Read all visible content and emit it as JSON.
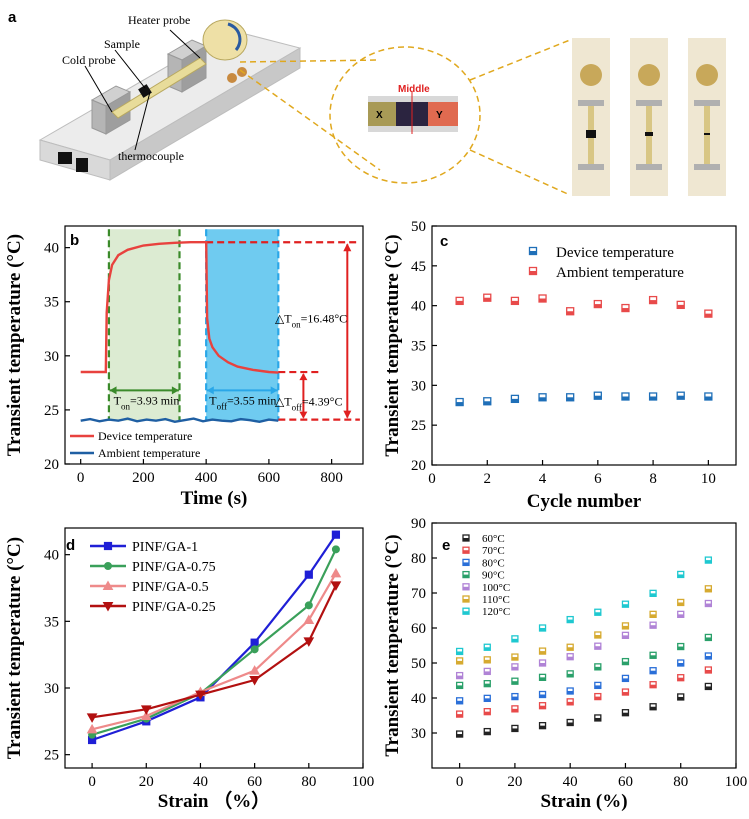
{
  "panel_a": {
    "label": "a",
    "callouts": {
      "heater": "Heater probe",
      "sample": "Sample",
      "cold": "Cold probe",
      "thermo": "thermocouple"
    },
    "zoom": {
      "middle": "Middle",
      "x": "X",
      "y": "Y"
    }
  },
  "chart_data": [
    {
      "id": "b",
      "type": "line",
      "panel": "b",
      "xlabel": "Time (s)",
      "ylabel": "Transient temperature (°C)",
      "xlim": [
        -50,
        900
      ],
      "ylim": [
        20,
        42
      ],
      "xticks": [
        "0",
        "200",
        "400",
        "600",
        "800"
      ],
      "yticks": [
        "20",
        "25",
        "30",
        "35",
        "40"
      ],
      "series": [
        {
          "name": "Device temperature",
          "color": "#e8423e",
          "x": [
            0,
            80,
            83,
            90,
            100,
            120,
            150,
            200,
            250,
            300,
            350,
            400,
            403,
            410,
            420,
            440,
            470,
            500,
            550,
            600,
            630
          ],
          "y": [
            28.5,
            28.5,
            34.0,
            37.0,
            38.4,
            39.3,
            39.8,
            40.2,
            40.35,
            40.45,
            40.5,
            40.5,
            33.5,
            31.6,
            30.8,
            30.0,
            29.4,
            29.0,
            28.7,
            28.5,
            28.45
          ]
        },
        {
          "name": "Ambient temperature",
          "color": "#1f5fa3",
          "x": [
            0,
            30,
            60,
            90,
            120,
            150,
            180,
            210,
            240,
            270,
            300,
            330,
            360,
            390,
            420,
            450,
            480,
            510,
            540,
            570,
            600,
            630
          ],
          "y": [
            24.0,
            24.15,
            23.95,
            24.1,
            24.0,
            24.2,
            23.95,
            24.1,
            24.0,
            24.15,
            23.9,
            24.05,
            24.2,
            23.95,
            24.1,
            24.0,
            23.95,
            24.15,
            24.05,
            23.9,
            24.1,
            24.0
          ]
        }
      ],
      "annotations": {
        "ton": "T",
        "ton_sub": "on",
        "ton_val": "=3.93 min",
        "toff": "T",
        "toff_sub": "off",
        "toff_val": "=3.55 min",
        "dton": "△T",
        "dton_sub": "on",
        "dton_val": "=16.48°C",
        "dtoff": "△T",
        "dtoff_sub": "off",
        "dtoff_val": "=4.39°C"
      },
      "legend": "bottom-left"
    },
    {
      "id": "c",
      "type": "scatter",
      "panel": "c",
      "xlabel": "Cycle number",
      "ylabel": "Transient temperature (°C)",
      "xlim": [
        0,
        11
      ],
      "ylim": [
        20,
        50
      ],
      "xticks": [
        "0",
        "2",
        "4",
        "6",
        "8",
        "10"
      ],
      "yticks": [
        "20",
        "25",
        "30",
        "35",
        "40",
        "45",
        "50"
      ],
      "series": [
        {
          "name": "Device temperature",
          "color": "#1f6fb8",
          "x": [
            1,
            2,
            3,
            4,
            5,
            6,
            7,
            8,
            9,
            10
          ],
          "y": [
            27.9,
            28.0,
            28.3,
            28.5,
            28.5,
            28.7,
            28.6,
            28.6,
            28.7,
            28.6
          ]
        },
        {
          "name": "Ambient temperature",
          "color": "#e84a4a",
          "x": [
            1,
            2,
            3,
            4,
            5,
            6,
            7,
            8,
            9,
            10
          ],
          "y": [
            40.6,
            41.0,
            40.6,
            40.9,
            39.3,
            40.2,
            39.7,
            40.7,
            40.1,
            39.0
          ]
        }
      ],
      "legend": "top-right"
    },
    {
      "id": "d",
      "type": "line",
      "panel": "d",
      "xlabel": "Strain （%）",
      "ylabel": "Transient temperature (°C)",
      "xlim": [
        -10,
        100
      ],
      "ylim": [
        24,
        42
      ],
      "xticks": [
        "0",
        "20",
        "40",
        "60",
        "80",
        "100"
      ],
      "yticks": [
        "25",
        "30",
        "35",
        "40"
      ],
      "series": [
        {
          "name": "PINF/GA-1",
          "color": "#1f1fd6",
          "marker": "square",
          "x": [
            0,
            20,
            40,
            60,
            80,
            90
          ],
          "y": [
            26.1,
            27.5,
            29.3,
            33.4,
            38.5,
            41.5
          ]
        },
        {
          "name": "PINF/GA-0.75",
          "color": "#3aa05a",
          "marker": "circle",
          "x": [
            0,
            20,
            40,
            60,
            80,
            90
          ],
          "y": [
            26.5,
            27.7,
            29.6,
            32.9,
            36.2,
            40.4
          ]
        },
        {
          "name": "PINF/GA-0.5",
          "color": "#ee8a8a",
          "marker": "triangle-up",
          "x": [
            0,
            20,
            40,
            60,
            80,
            90
          ],
          "y": [
            26.9,
            27.9,
            29.7,
            31.3,
            35.1,
            38.6
          ]
        },
        {
          "name": "PINF/GA-0.25",
          "color": "#b21010",
          "marker": "triangle-down",
          "x": [
            0,
            20,
            40,
            60,
            80,
            90
          ],
          "y": [
            27.8,
            28.4,
            29.5,
            30.6,
            33.5,
            37.7
          ]
        }
      ],
      "legend": "top-left"
    },
    {
      "id": "e",
      "type": "scatter",
      "panel": "e",
      "xlabel": "Strain (%)",
      "ylabel": "Transient temperature (°C)",
      "xlim": [
        -10,
        100
      ],
      "ylim": [
        20,
        90
      ],
      "xticks": [
        "0",
        "20",
        "40",
        "60",
        "80",
        "100"
      ],
      "yticks": [
        "30",
        "40",
        "50",
        "60",
        "70",
        "80",
        "90"
      ],
      "series": [
        {
          "name": "60°C",
          "color": "#222222",
          "x": [
            0,
            10,
            20,
            30,
            40,
            50,
            60,
            70,
            80,
            90
          ],
          "y": [
            29.7,
            30.4,
            31.3,
            32.1,
            33.0,
            34.3,
            35.8,
            37.5,
            40.3,
            43.3
          ]
        },
        {
          "name": "70°C",
          "color": "#e84a4a",
          "x": [
            0,
            10,
            20,
            30,
            40,
            50,
            60,
            70,
            80,
            90
          ],
          "y": [
            35.4,
            36.1,
            36.9,
            37.8,
            38.9,
            40.4,
            41.7,
            43.8,
            45.8,
            48.0
          ]
        },
        {
          "name": "80°C",
          "color": "#2a6fd8",
          "x": [
            0,
            10,
            20,
            30,
            40,
            50,
            60,
            70,
            80,
            90
          ],
          "y": [
            39.2,
            39.9,
            40.4,
            41.0,
            42.0,
            43.6,
            45.6,
            47.8,
            50.0,
            52.0
          ]
        },
        {
          "name": "90°C",
          "color": "#2aa06a",
          "x": [
            0,
            10,
            20,
            30,
            40,
            50,
            60,
            70,
            80,
            90
          ],
          "y": [
            43.6,
            44.1,
            44.8,
            45.9,
            46.9,
            48.9,
            50.4,
            52.2,
            54.7,
            57.3
          ]
        },
        {
          "name": "100°C",
          "color": "#b083d6",
          "x": [
            0,
            10,
            20,
            30,
            40,
            50,
            60,
            70,
            80,
            90
          ],
          "y": [
            46.4,
            47.6,
            48.9,
            50.0,
            51.8,
            54.8,
            57.9,
            60.8,
            63.9,
            67.0
          ]
        },
        {
          "name": "110°C",
          "color": "#d6aa30",
          "x": [
            0,
            10,
            20,
            30,
            40,
            50,
            60,
            70,
            80,
            90
          ],
          "y": [
            50.6,
            50.9,
            51.7,
            53.4,
            54.5,
            58.0,
            60.6,
            63.9,
            67.3,
            71.2
          ]
        },
        {
          "name": "120°C",
          "color": "#1ec8d0",
          "x": [
            0,
            10,
            20,
            30,
            40,
            50,
            60,
            70,
            80,
            90
          ],
          "y": [
            53.3,
            54.5,
            56.9,
            60.0,
            62.4,
            64.5,
            66.8,
            69.9,
            75.3,
            79.4
          ]
        }
      ],
      "legend": "top-left"
    }
  ]
}
